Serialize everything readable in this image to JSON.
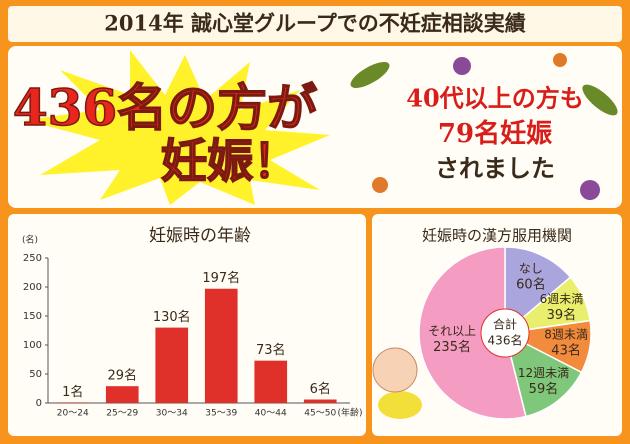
{
  "header": {
    "title": "2014年 誠心堂グループでの不妊症相談実績",
    "headline": [
      "436名の方が",
      "妊娠！"
    ],
    "subheadline": [
      "40代以上の方も",
      "79名妊娠",
      "されました"
    ]
  },
  "chart_data": [
    {
      "type": "bar",
      "title": "妊娠時の年齢",
      "y_unit": "(名)",
      "x_unit": "(年齢)",
      "categories": [
        "20～24",
        "25～29",
        "30～34",
        "35～39",
        "40～44",
        "45～50"
      ],
      "values": [
        1,
        29,
        130,
        197,
        73,
        6
      ],
      "value_labels": [
        "1名",
        "29名",
        "130名",
        "197名",
        "73名",
        "6名"
      ],
      "color": "#e0302a",
      "ylim": [
        0,
        250
      ],
      "yticks": [
        0,
        50,
        100,
        150,
        200,
        250
      ],
      "grid": false
    },
    {
      "type": "pie",
      "title": "妊娠時の漢方服用機関",
      "categories": [
        "なし",
        "6週未満",
        "8週未満",
        "12週未満",
        "それ以上"
      ],
      "values": [
        60,
        39,
        43,
        59,
        235
      ],
      "value_labels": [
        "60名",
        "39名",
        "43名",
        "59名",
        "235名"
      ],
      "colors": [
        "#aaa5dd",
        "#e9ef6c",
        "#f28b3c",
        "#7fc77a",
        "#f59cc3"
      ],
      "center_label": [
        "合計",
        "436名"
      ]
    }
  ]
}
